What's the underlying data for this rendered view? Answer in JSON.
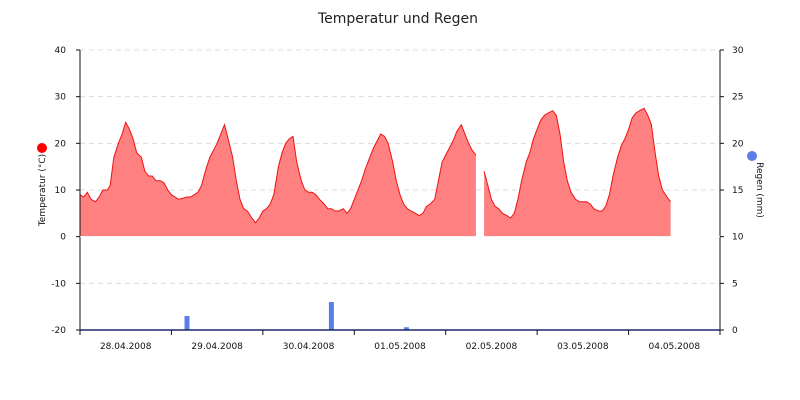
{
  "chart_data": {
    "type": "area",
    "title": "Temperatur und Regen",
    "x_categories": [
      "28.04.2008",
      "29.04.2008",
      "30.04.2008",
      "01.05.2008",
      "02.05.2008",
      "03.05.2008",
      "04.05.2008"
    ],
    "y_left": {
      "label": "Temperatur (°C)",
      "range": [
        -20,
        40
      ],
      "ticks": [
        "40",
        "30",
        "20",
        "10",
        "0",
        "-10",
        "-20"
      ],
      "marker_color": "#ff0000"
    },
    "y_right": {
      "label": "Regen (mm)",
      "range": [
        0,
        30
      ],
      "ticks": [
        "30",
        "25",
        "20",
        "15",
        "10",
        "5",
        "0"
      ],
      "marker_color": "#5b7fe8"
    },
    "grid": "horizontal-dashed",
    "colors": {
      "temperature_fill": "#ff8080",
      "temperature_line": "#ee1111",
      "rain_bar": "#5b7fe8"
    },
    "series": [
      {
        "name": "Temperatur",
        "type": "area",
        "points": [
          [
            0.0,
            9
          ],
          [
            0.04,
            8.5
          ],
          [
            0.08,
            9.5
          ],
          [
            0.12,
            8
          ],
          [
            0.17,
            7.5
          ],
          [
            0.21,
            8.5
          ],
          [
            0.25,
            10
          ],
          [
            0.3,
            10
          ],
          [
            0.33,
            11
          ],
          [
            0.37,
            17
          ],
          [
            0.42,
            20
          ],
          [
            0.46,
            22
          ],
          [
            0.5,
            24.5
          ],
          [
            0.54,
            23
          ],
          [
            0.58,
            21
          ],
          [
            0.62,
            18
          ],
          [
            0.67,
            17
          ],
          [
            0.71,
            14
          ],
          [
            0.75,
            13
          ],
          [
            0.79,
            13
          ],
          [
            0.83,
            12
          ],
          [
            0.88,
            12
          ],
          [
            0.92,
            11.5
          ],
          [
            0.96,
            10
          ],
          [
            1.0,
            9
          ],
          [
            1.04,
            8.5
          ],
          [
            1.08,
            8
          ],
          [
            1.12,
            8.2
          ],
          [
            1.17,
            8.5
          ],
          [
            1.21,
            8.5
          ],
          [
            1.25,
            9
          ],
          [
            1.29,
            9.5
          ],
          [
            1.33,
            11
          ],
          [
            1.37,
            14
          ],
          [
            1.42,
            17
          ],
          [
            1.46,
            18.5
          ],
          [
            1.5,
            20
          ],
          [
            1.54,
            22
          ],
          [
            1.58,
            24
          ],
          [
            1.62,
            21
          ],
          [
            1.67,
            17
          ],
          [
            1.71,
            12
          ],
          [
            1.75,
            8
          ],
          [
            1.79,
            6
          ],
          [
            1.83,
            5.5
          ],
          [
            1.88,
            4
          ],
          [
            1.92,
            3
          ],
          [
            1.96,
            4
          ],
          [
            2.0,
            5.5
          ],
          [
            2.04,
            6
          ],
          [
            2.08,
            7
          ],
          [
            2.12,
            9
          ],
          [
            2.17,
            15
          ],
          [
            2.21,
            18
          ],
          [
            2.25,
            20
          ],
          [
            2.29,
            21
          ],
          [
            2.33,
            21.5
          ],
          [
            2.37,
            16
          ],
          [
            2.42,
            12
          ],
          [
            2.46,
            10
          ],
          [
            2.5,
            9.5
          ],
          [
            2.54,
            9.5
          ],
          [
            2.58,
            9
          ],
          [
            2.62,
            8
          ],
          [
            2.67,
            7
          ],
          [
            2.71,
            6
          ],
          [
            2.75,
            6
          ],
          [
            2.79,
            5.5
          ],
          [
            2.83,
            5.5
          ],
          [
            2.88,
            6
          ],
          [
            2.92,
            5
          ],
          [
            2.96,
            6
          ],
          [
            3.0,
            8
          ],
          [
            3.04,
            10
          ],
          [
            3.08,
            12
          ],
          [
            3.12,
            14.5
          ],
          [
            3.17,
            17
          ],
          [
            3.21,
            19
          ],
          [
            3.25,
            20.5
          ],
          [
            3.29,
            22
          ],
          [
            3.33,
            21.5
          ],
          [
            3.37,
            20
          ],
          [
            3.42,
            16
          ],
          [
            3.46,
            12
          ],
          [
            3.5,
            9
          ],
          [
            3.54,
            7
          ],
          [
            3.58,
            6
          ],
          [
            3.62,
            5.5
          ],
          [
            3.67,
            5
          ],
          [
            3.71,
            4.5
          ],
          [
            3.75,
            5
          ],
          [
            3.79,
            6.5
          ],
          [
            3.83,
            7
          ],
          [
            3.88,
            8
          ],
          [
            3.92,
            12
          ],
          [
            3.96,
            16
          ],
          [
            4.0,
            17.5
          ],
          [
            4.04,
            19
          ],
          [
            4.08,
            20.5
          ],
          [
            4.12,
            22.5
          ],
          [
            4.17,
            24
          ],
          [
            4.21,
            22
          ],
          [
            4.25,
            20
          ],
          [
            4.29,
            18.5
          ],
          [
            4.33,
            17.5
          ],
          [
            4.37,
            null
          ],
          [
            4.4,
            null
          ],
          [
            4.42,
            14
          ],
          [
            4.46,
            11
          ],
          [
            4.5,
            8
          ],
          [
            4.54,
            6.5
          ],
          [
            4.58,
            6
          ],
          [
            4.62,
            5
          ],
          [
            4.67,
            4.5
          ],
          [
            4.71,
            4
          ],
          [
            4.75,
            5
          ],
          [
            4.79,
            8
          ],
          [
            4.83,
            12
          ],
          [
            4.88,
            16
          ],
          [
            4.92,
            18
          ],
          [
            4.96,
            21
          ],
          [
            5.0,
            23
          ],
          [
            5.04,
            25
          ],
          [
            5.08,
            26
          ],
          [
            5.12,
            26.5
          ],
          [
            5.17,
            27
          ],
          [
            5.21,
            26
          ],
          [
            5.25,
            22
          ],
          [
            5.29,
            16
          ],
          [
            5.33,
            12
          ],
          [
            5.37,
            9.5
          ],
          [
            5.42,
            8
          ],
          [
            5.46,
            7.5
          ],
          [
            5.5,
            7.5
          ],
          [
            5.54,
            7.5
          ],
          [
            5.58,
            7
          ],
          [
            5.62,
            6
          ],
          [
            5.67,
            5.5
          ],
          [
            5.71,
            5.5
          ],
          [
            5.75,
            6.5
          ],
          [
            5.79,
            9
          ],
          [
            5.83,
            13
          ],
          [
            5.88,
            17
          ],
          [
            5.92,
            19.5
          ],
          [
            5.96,
            21
          ],
          [
            6.0,
            23
          ],
          [
            6.04,
            25.5
          ],
          [
            6.08,
            26.5
          ],
          [
            6.12,
            27
          ],
          [
            6.17,
            27.5
          ],
          [
            6.21,
            26
          ],
          [
            6.25,
            24
          ],
          [
            6.29,
            18
          ],
          [
            6.33,
            13
          ],
          [
            6.37,
            10
          ],
          [
            6.42,
            8.5
          ],
          [
            6.46,
            7.5
          ]
        ]
      },
      {
        "name": "Regen",
        "type": "bar",
        "points": [
          [
            1.17,
            1.5
          ],
          [
            2.75,
            3
          ],
          [
            3.57,
            0.3
          ]
        ]
      }
    ]
  }
}
